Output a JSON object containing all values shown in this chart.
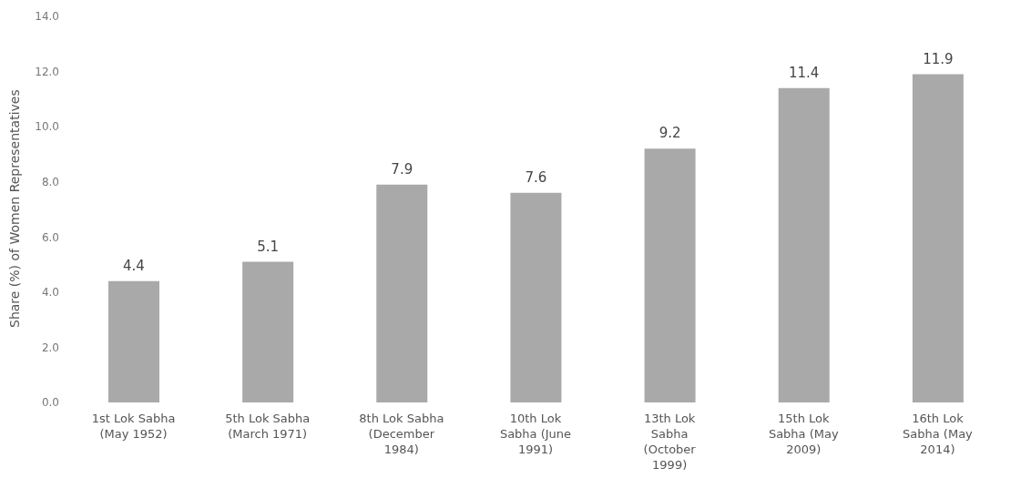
{
  "chart_data": {
    "type": "bar",
    "ylabel": "Share (%) of Women Representatives",
    "categories": [
      "1st Lok Sabha (May 1952)",
      "5th Lok Sabha (March 1971)",
      "8th Lok Sabha (December 1984)",
      "10th Lok Sabha (June 1991)",
      "13th Lok Sabha (October 1999)",
      "15th Lok Sabha (May 2009)",
      "16th Lok Sabha (May 2014)"
    ],
    "values": [
      4.4,
      5.1,
      7.9,
      7.6,
      9.2,
      11.4,
      11.9
    ],
    "color": "#a9a9a9",
    "data_labels": true,
    "grid": false,
    "legend": false,
    "ylim": [
      0,
      14
    ],
    "yticks": [
      {
        "value": 0,
        "label": "0.0"
      },
      {
        "value": 2,
        "label": "2.0"
      },
      {
        "value": 4,
        "label": "4.0"
      },
      {
        "value": 6,
        "label": "6.0"
      },
      {
        "value": 8,
        "label": "8.0"
      },
      {
        "value": 10,
        "label": "10.0"
      },
      {
        "value": 12,
        "label": "12.0"
      },
      {
        "value": 14,
        "label": "14.0"
      }
    ]
  }
}
